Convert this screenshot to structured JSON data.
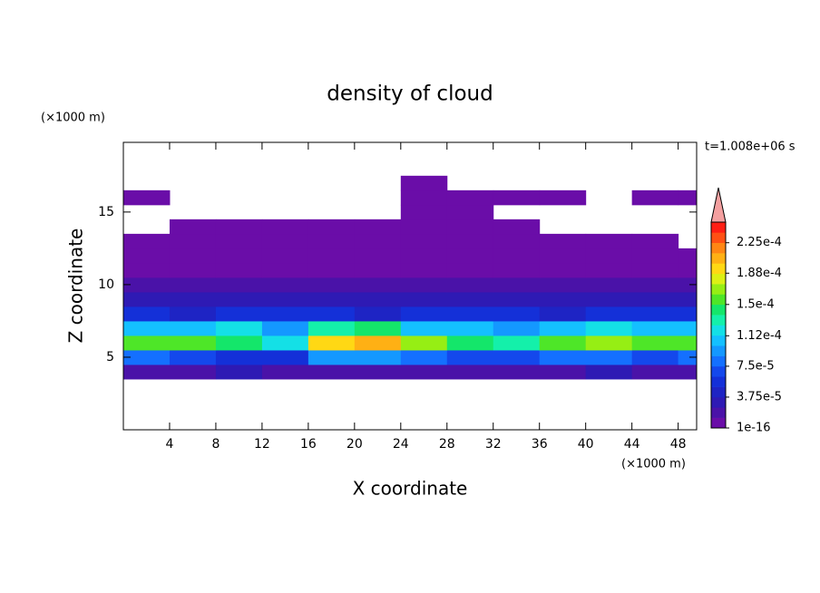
{
  "chart_data": {
    "type": "contour",
    "title": "density of cloud",
    "xlabel": "X coordinate",
    "ylabel": "Z coordinate",
    "x_unit": "(×1000 m)",
    "y_unit": "(×1000 m)",
    "time_label": "t=1.008e+06 s",
    "xlim": [
      0,
      49.6
    ],
    "ylim": [
      0,
      19.8
    ],
    "xticks": [
      4,
      8,
      12,
      16,
      20,
      24,
      28,
      32,
      36,
      40,
      44,
      48
    ],
    "yticks": [
      5,
      10,
      15
    ],
    "x": [
      2,
      6,
      10,
      14,
      18,
      22,
      26,
      30,
      34,
      38,
      42,
      46,
      50
    ],
    "z": [
      4,
      5,
      6,
      7,
      8,
      9,
      10,
      11,
      12,
      13,
      14,
      15,
      16,
      17
    ],
    "values": [
      [
        2e-05,
        2e-05,
        3e-05,
        2e-05,
        2e-05,
        2e-05,
        2e-05,
        2e-05,
        2e-05,
        2e-05,
        3e-05,
        2e-05,
        2e-05
      ],
      [
        8e-05,
        7e-05,
        6e-05,
        6e-05,
        9e-05,
        9e-05,
        8e-05,
        7e-05,
        7e-05,
        8e-05,
        8e-05,
        7e-05,
        8e-05
      ],
      [
        0.00016,
        0.00015,
        0.00014,
        0.00012,
        0.00019,
        0.0002,
        0.00017,
        0.00014,
        0.00013,
        0.00016,
        0.00017,
        0.00015,
        0.00016
      ],
      [
        0.00011,
        0.0001,
        0.00012,
        9e-05,
        0.00013,
        0.00014,
        0.00011,
        0.0001,
        9e-05,
        0.00011,
        0.00012,
        0.0001,
        0.00011
      ],
      [
        5e-05,
        4e-05,
        6e-05,
        5e-05,
        5e-05,
        4e-05,
        5e-05,
        6e-05,
        5e-05,
        4e-05,
        5e-05,
        6e-05,
        5e-05
      ],
      [
        3e-05,
        3e-05,
        3e-05,
        3e-05,
        3e-05,
        3e-05,
        3e-05,
        3e-05,
        3e-05,
        3e-05,
        3e-05,
        3e-05,
        3e-05
      ],
      [
        2e-05,
        2e-05,
        2e-05,
        2e-05,
        2e-05,
        2e-05,
        2e-05,
        2e-05,
        2e-05,
        2e-05,
        2e-05,
        2e-05,
        2e-05
      ],
      [
        1e-05,
        1e-05,
        1e-05,
        1e-05,
        1e-05,
        1e-05,
        1e-05,
        1e-05,
        1e-05,
        1e-05,
        1e-05,
        1e-05,
        1e-05
      ],
      [
        4e-06,
        4e-06,
        4e-06,
        4e-06,
        4e-06,
        4e-06,
        4e-06,
        4e-06,
        4e-06,
        4e-06,
        4e-06,
        4e-06,
        4e-06
      ],
      [
        2e-06,
        2e-06,
        2e-06,
        2e-06,
        2e-06,
        2e-06,
        2e-06,
        2e-06,
        2e-06,
        2e-06,
        2e-06,
        2e-06,
        null
      ],
      [
        null,
        1e-06,
        1e-06,
        1e-06,
        1e-06,
        1e-06,
        1e-06,
        1e-06,
        1e-06,
        null,
        null,
        null,
        null
      ],
      [
        null,
        null,
        null,
        null,
        null,
        null,
        1e-06,
        1e-06,
        null,
        null,
        null,
        null,
        null
      ],
      [
        1e-06,
        null,
        null,
        null,
        null,
        null,
        1e-06,
        1e-06,
        1e-06,
        1e-06,
        null,
        1e-06,
        1e-06
      ],
      [
        null,
        null,
        null,
        null,
        null,
        null,
        1e-06,
        null,
        null,
        null,
        null,
        null,
        null
      ]
    ],
    "colorbar": {
      "clim": [
        0,
        0.00025
      ],
      "colors": [
        "#6a0da8",
        "#4a12a8",
        "#2e1ab4",
        "#1e24c4",
        "#1430d8",
        "#1448ec",
        "#1470ff",
        "#1498ff",
        "#14c0ff",
        "#14e0e6",
        "#14f0aa",
        "#14e66a",
        "#4ee628",
        "#96ee14",
        "#dcf014",
        "#ffd814",
        "#ffb014",
        "#ff8614",
        "#ff5014",
        "#ff1e14"
      ],
      "extend_color": "#f4a0a0",
      "ticks": [
        {
          "value": 1e-16,
          "label": "1e-16"
        },
        {
          "value": 3.75e-05,
          "label": "3.75e-5"
        },
        {
          "value": 7.5e-05,
          "label": "7.5e-5"
        },
        {
          "value": 0.000112,
          "label": "1.12e-4"
        },
        {
          "value": 0.00015,
          "label": "1.5e-4"
        },
        {
          "value": 0.000188,
          "label": "1.88e-4"
        },
        {
          "value": 0.000225,
          "label": "2.25e-4"
        }
      ]
    }
  }
}
